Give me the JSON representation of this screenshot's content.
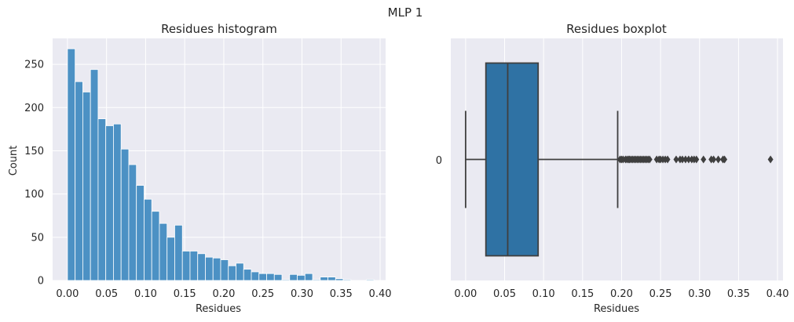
{
  "suptitle": "MLP 1",
  "chart_data": [
    {
      "type": "bar",
      "subtype": "histogram",
      "title": "Residues histogram",
      "xlabel": "Residues",
      "ylabel": "Count",
      "xlim": [
        -0.019,
        0.407
      ],
      "ylim": [
        0,
        280
      ],
      "xticks": [
        "0.00",
        "0.05",
        "0.10",
        "0.15",
        "0.20",
        "0.25",
        "0.30",
        "0.35",
        "0.40"
      ],
      "yticks": [
        "0",
        "50",
        "100",
        "150",
        "200",
        "250"
      ],
      "bin_start": 0.0,
      "bin_width": 0.0098,
      "counts": [
        268,
        230,
        218,
        244,
        187,
        179,
        181,
        152,
        134,
        110,
        94,
        80,
        66,
        50,
        64,
        34,
        34,
        31,
        27,
        26,
        24,
        17,
        20,
        13,
        10,
        8,
        8,
        7,
        1,
        7,
        6,
        8,
        1,
        4,
        4,
        2,
        1,
        0,
        0,
        1
      ],
      "bar_color": "#4c91c4",
      "background": "#eaeaf2",
      "grid": true
    },
    {
      "type": "boxplot",
      "title": "Residues boxplot",
      "xlabel": "Residues",
      "ylabel": "",
      "category": "0",
      "xlim": [
        -0.019,
        0.407
      ],
      "xticks": [
        "0.00",
        "0.05",
        "0.10",
        "0.15",
        "0.20",
        "0.25",
        "0.30",
        "0.35",
        "0.40"
      ],
      "min_whisker": 0.0,
      "q1": 0.026,
      "median": 0.054,
      "q3": 0.093,
      "max_whisker": 0.195,
      "outliers": [
        0.198,
        0.2,
        0.202,
        0.205,
        0.207,
        0.209,
        0.21,
        0.212,
        0.214,
        0.216,
        0.218,
        0.22,
        0.222,
        0.224,
        0.226,
        0.228,
        0.23,
        0.232,
        0.234,
        0.236,
        0.245,
        0.248,
        0.25,
        0.253,
        0.256,
        0.259,
        0.27,
        0.275,
        0.278,
        0.282,
        0.286,
        0.29,
        0.293,
        0.296,
        0.305,
        0.315,
        0.318,
        0.324,
        0.33,
        0.332,
        0.391
      ],
      "box_color": "#2f72a4",
      "line_color": "#3f3f3f",
      "background": "#eaeaf2",
      "grid": true
    }
  ]
}
